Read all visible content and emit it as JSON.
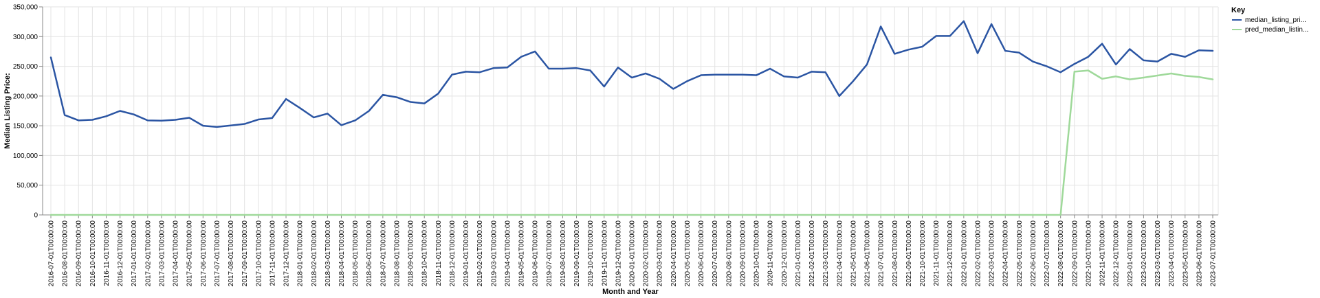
{
  "chart_data": {
    "type": "line",
    "xlabel": "Month and Year",
    "ylabel": "Median Listing Price:",
    "ylim": [
      0,
      350000
    ],
    "yticks": [
      "0",
      "50,000",
      "100,000",
      "150,000",
      "200,000",
      "250,000",
      "300,000",
      "350,000"
    ],
    "grid": true,
    "legend_position": "right",
    "legend_title": "Key",
    "x": [
      "2016-07-01T00:00:00",
      "2016-08-01T00:00:00",
      "2016-09-01T00:00:00",
      "2016-10-01T00:00:00",
      "2016-11-01T00:00:00",
      "2016-12-01T00:00:00",
      "2017-01-01T00:00:00",
      "2017-02-01T00:00:00",
      "2017-03-01T00:00:00",
      "2017-04-01T00:00:00",
      "2017-05-01T00:00:00",
      "2017-06-01T00:00:00",
      "2017-07-01T00:00:00",
      "2017-08-01T00:00:00",
      "2017-09-01T00:00:00",
      "2017-10-01T00:00:00",
      "2017-11-01T00:00:00",
      "2017-12-01T00:00:00",
      "2018-01-01T00:00:00",
      "2018-02-01T00:00:00",
      "2018-03-01T00:00:00",
      "2018-04-01T00:00:00",
      "2018-05-01T00:00:00",
      "2018-06-01T00:00:00",
      "2018-07-01T00:00:00",
      "2018-08-01T00:00:00",
      "2018-09-01T00:00:00",
      "2018-10-01T00:00:00",
      "2018-11-01T00:00:00",
      "2018-12-01T00:00:00",
      "2019-01-01T00:00:00",
      "2019-02-01T00:00:00",
      "2019-03-01T00:00:00",
      "2019-04-01T00:00:00",
      "2019-05-01T00:00:00",
      "2019-06-01T00:00:00",
      "2019-07-01T00:00:00",
      "2019-08-01T00:00:00",
      "2019-09-01T00:00:00",
      "2019-10-01T00:00:00",
      "2019-11-01T00:00:00",
      "2019-12-01T00:00:00",
      "2020-01-01T00:00:00",
      "2020-02-01T00:00:00",
      "2020-03-01T00:00:00",
      "2020-04-01T00:00:00",
      "2020-05-01T00:00:00",
      "2020-06-01T00:00:00",
      "2020-07-01T00:00:00",
      "2020-08-01T00:00:00",
      "2020-09-01T00:00:00",
      "2020-10-01T00:00:00",
      "2020-11-01T00:00:00",
      "2020-12-01T00:00:00",
      "2021-01-01T00:00:00",
      "2021-02-01T00:00:00",
      "2021-03-01T00:00:00",
      "2021-04-01T00:00:00",
      "2021-05-01T00:00:00",
      "2021-06-01T00:00:00",
      "2021-07-01T00:00:00",
      "2021-08-01T00:00:00",
      "2021-09-01T00:00:00",
      "2021-10-01T00:00:00",
      "2021-11-01T00:00:00",
      "2021-12-01T00:00:00",
      "2022-01-01T00:00:00",
      "2022-02-01T00:00:00",
      "2022-03-01T00:00:00",
      "2022-04-01T00:00:00",
      "2022-05-01T00:00:00",
      "2022-06-01T00:00:00",
      "2022-07-01T00:00:00",
      "2022-08-01T00:00:00",
      "2022-09-01T00:00:00",
      "2022-10-01T00:00:00",
      "2022-11-01T00:00:00",
      "2022-12-01T00:00:00",
      "2023-01-01T00:00:00",
      "2023-02-01T00:00:00",
      "2023-03-01T00:00:00",
      "2023-04-01T00:00:00",
      "2023-05-01T00:00:00",
      "2023-06-01T00:00:00",
      "2023-07-01T00:00:00"
    ],
    "series": [
      {
        "name": "median_listing_pri...",
        "color": "#2b55a3",
        "values": [
          265000,
          168000,
          159000,
          160000,
          166000,
          175000,
          169000,
          159000,
          158500,
          160000,
          163500,
          150000,
          148000,
          150500,
          153000,
          160500,
          163000,
          195000,
          180000,
          164000,
          170500,
          151000,
          159000,
          175000,
          202000,
          198000,
          190000,
          187500,
          204000,
          236000,
          241000,
          240000,
          247000,
          248000,
          266000,
          275000,
          246000,
          246000,
          247000,
          243000,
          216000,
          248000,
          231000,
          238000,
          229000,
          212000,
          225000,
          235000,
          236000,
          236000,
          236000,
          235000,
          246000,
          233000,
          231000,
          241000,
          240000,
          200000,
          225000,
          253000,
          317000,
          271000,
          278000,
          283000,
          301000,
          301000,
          326000,
          272000,
          321000,
          276000,
          273000,
          258000,
          250000,
          240000,
          254000,
          266000,
          288000,
          253000,
          279000,
          260000,
          258000,
          271000,
          266000,
          277000,
          276000
        ]
      },
      {
        "name": "pred_median_listin...",
        "color": "#9fd99a",
        "values": [
          0,
          0,
          0,
          0,
          0,
          0,
          0,
          0,
          0,
          0,
          0,
          0,
          0,
          0,
          0,
          0,
          0,
          0,
          0,
          0,
          0,
          0,
          0,
          0,
          0,
          0,
          0,
          0,
          0,
          0,
          0,
          0,
          0,
          0,
          0,
          0,
          0,
          0,
          0,
          0,
          0,
          0,
          0,
          0,
          0,
          0,
          0,
          0,
          0,
          0,
          0,
          0,
          0,
          0,
          0,
          0,
          0,
          0,
          0,
          0,
          0,
          0,
          0,
          0,
          0,
          0,
          0,
          0,
          0,
          0,
          0,
          0,
          0,
          0,
          241000,
          243000,
          229000,
          233000,
          228000,
          231000,
          234500,
          238000,
          234000,
          232000,
          228000
        ]
      }
    ]
  }
}
